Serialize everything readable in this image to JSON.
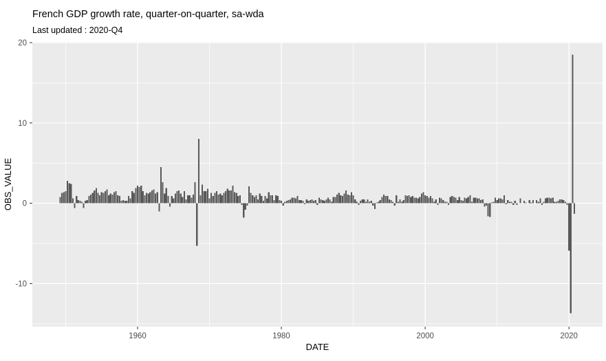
{
  "header": {
    "title": "French GDP growth rate, quarter-on-quarter, sa-wda",
    "subtitle": "Last updated : 2020-Q4"
  },
  "chart_data": {
    "type": "bar",
    "title": "French GDP growth rate, quarter-on-quarter, sa-wda",
    "subtitle": "Last updated : 2020-Q4",
    "xlabel": "DATE",
    "ylabel": "OBS_VALUE",
    "x_tick_labels": [
      "1960",
      "1980",
      "2000",
      "2020"
    ],
    "x_ticks": [
      1960,
      1980,
      2000,
      2020
    ],
    "x_minor_ticks": [
      1950,
      1970,
      1990,
      2010
    ],
    "y_tick_labels": [
      "20",
      "10",
      "0",
      "-10"
    ],
    "y_ticks": [
      20,
      10,
      0,
      -10
    ],
    "y_minor_ticks": [
      15,
      5,
      -5,
      -15
    ],
    "ylim": [
      -15.4,
      20.1
    ],
    "xlim": [
      1945.4,
      2024.7
    ],
    "grid": "on",
    "legend": "none",
    "start_quarter": "1949-Q2",
    "end_quarter": "2020-Q4",
    "values": [
      0.8,
      1.3,
      1.4,
      1.5,
      2.8,
      2.5,
      2.4,
      0.6,
      -0.6,
      0.9,
      0.4,
      0.3,
      0.2,
      -0.6,
      0.3,
      0.4,
      0.9,
      1.1,
      1.3,
      1.6,
      1.9,
      1.3,
      1.0,
      1.4,
      1.3,
      1.5,
      1.7,
      1.0,
      1.2,
      1.1,
      1.4,
      1.5,
      1.0,
      0.9,
      0.3,
      0.4,
      0.3,
      0.3,
      0.9,
      0.6,
      1.5,
      1.3,
      1.9,
      2.2,
      2.0,
      2.2,
      1.5,
      1.0,
      1.3,
      1.2,
      1.4,
      1.6,
      1.7,
      1.2,
      1.4,
      -1.0,
      4.5,
      2.6,
      1.2,
      1.9,
      0.9,
      -0.4,
      0.9,
      0.6,
      1.2,
      1.5,
      1.6,
      1.2,
      0.8,
      1.5,
      0.5,
      1.0,
      1.0,
      0.7,
      1.1,
      2.6,
      -5.3,
      8.0,
      1.0,
      2.3,
      1.5,
      1.5,
      1.8,
      0.6,
      1.3,
      0.9,
      1.3,
      1.5,
      1.1,
      1.2,
      1.0,
      1.3,
      1.5,
      1.8,
      1.6,
      1.6,
      2.2,
      1.4,
      1.3,
      0.9,
      1.0,
      -0.2,
      -1.8,
      -0.8,
      -0.3,
      2.1,
      1.3,
      1.0,
      0.8,
      1.0,
      0.5,
      1.2,
      0.9,
      0.3,
      0.9,
      0.6,
      1.4,
      1.0,
      1.0,
      0.4,
      1.0,
      0.9,
      0.4,
      0.3,
      -0.3,
      0.2,
      0.3,
      0.4,
      0.5,
      0.7,
      0.7,
      0.6,
      0.9,
      0.4,
      0.4,
      0.3,
      -0.1,
      0.5,
      0.3,
      0.4,
      0.5,
      0.3,
      0.4,
      -0.2,
      0.7,
      0.5,
      0.4,
      0.3,
      0.5,
      0.7,
      0.5,
      0.2,
      0.8,
      0.8,
      1.1,
      1.3,
      1.0,
      0.9,
      1.2,
      1.6,
      1.1,
      1.0,
      1.4,
      1.0,
      0.5,
      0.2,
      -0.2,
      0.3,
      0.5,
      0.5,
      0.2,
      0.5,
      0.2,
      0.3,
      -0.3,
      -0.7,
      0.1,
      0.2,
      0.4,
      0.8,
      1.1,
      0.9,
      0.9,
      0.5,
      0.4,
      0.2,
      -0.3,
      1.0,
      0.2,
      0.5,
      0.2,
      0.4,
      1.0,
      0.9,
      1.0,
      0.8,
      0.9,
      0.7,
      0.7,
      0.6,
      0.8,
      1.2,
      1.4,
      1.0,
      0.9,
      0.7,
      0.9,
      0.6,
      0.2,
      0.5,
      -0.2,
      0.7,
      0.6,
      0.4,
      0.2,
      0.2,
      -0.2,
      0.8,
      0.9,
      0.8,
      0.7,
      0.4,
      0.8,
      0.4,
      0.3,
      0.7,
      0.6,
      0.8,
      1.0,
      0.2,
      0.7,
      0.7,
      0.6,
      0.6,
      0.4,
      0.5,
      -0.4,
      -0.3,
      -1.6,
      -1.7,
      0.1,
      0.2,
      0.7,
      0.4,
      0.6,
      0.6,
      0.5,
      1.0,
      -0.1,
      0.4,
      0.2,
      0.2,
      -0.2,
      0.3,
      -0.2,
      0.0,
      0.6,
      0.0,
      0.3,
      0.1,
      0.0,
      0.4,
      0.1,
      0.4,
      0.0,
      0.4,
      0.2,
      0.6,
      -0.2,
      0.2,
      0.6,
      0.7,
      0.7,
      0.6,
      0.7,
      0.2,
      0.2,
      0.3,
      0.5,
      0.5,
      0.4,
      0.2,
      -0.2,
      -5.9,
      -13.7,
      18.5,
      -1.3
    ]
  },
  "colors": {
    "page_bg": "#FFFFFF",
    "panel_bg": "#EBEBEB",
    "grid": "#FFFFFF",
    "bar": "#595959",
    "tick_mark": "#333333",
    "tick_text": "#4D4D4D",
    "title_text": "#000000"
  }
}
